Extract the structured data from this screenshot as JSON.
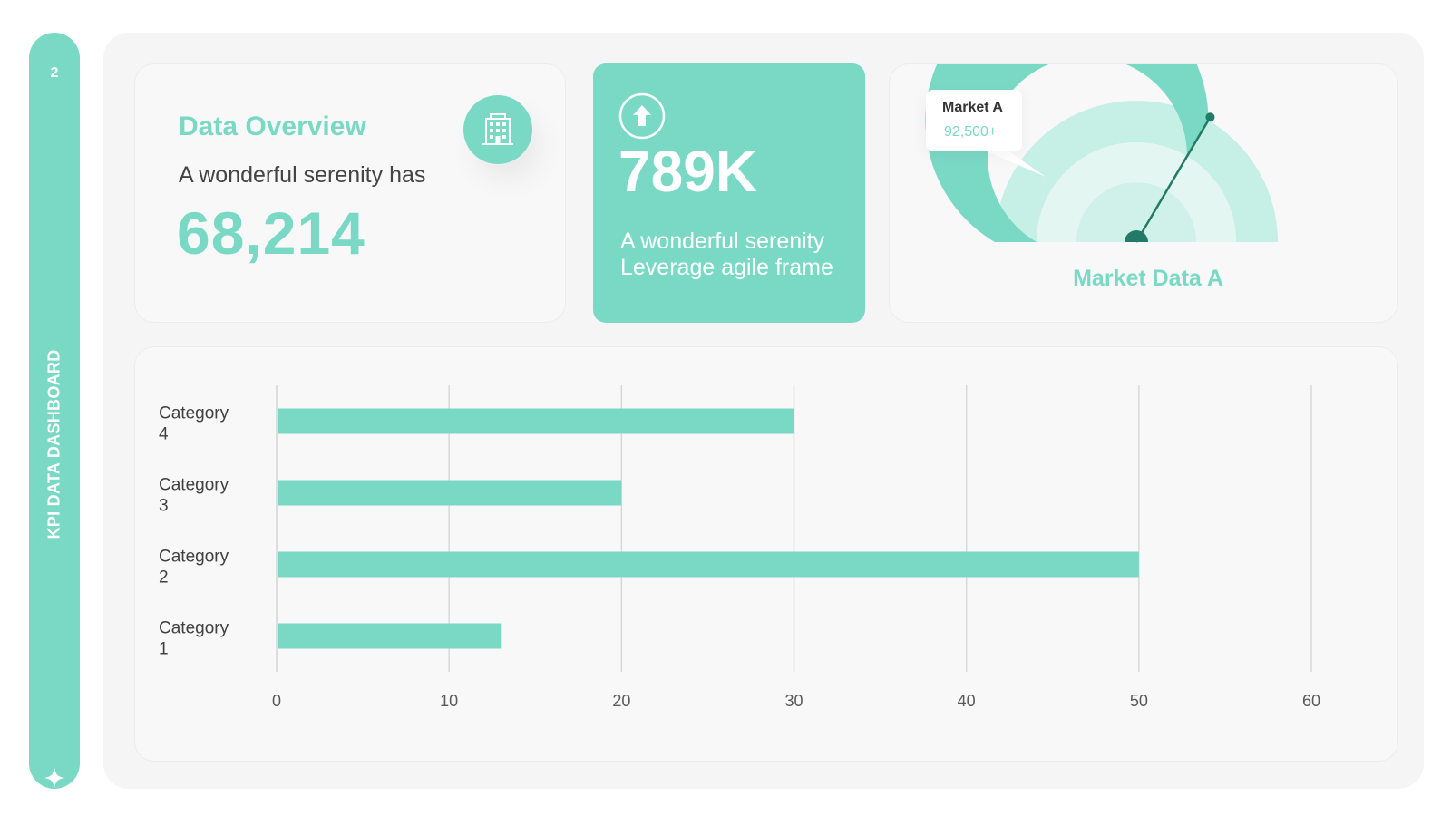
{
  "sidebar": {
    "page_number": "2",
    "title": "KPI DATA DASHBOARD",
    "star_icon": "sparkle-icon"
  },
  "overview": {
    "title": "Data Overview",
    "subtitle": "A wonderful serenity has",
    "value": "68,214",
    "icon": "building-icon"
  },
  "kpi": {
    "icon": "arrow-up-circle-icon",
    "value": "789K",
    "description": "A wonderful serenity Leverage agile frame"
  },
  "gauge": {
    "tooltip_title": "Market A",
    "tooltip_value": "92,500+",
    "label": "Market Data A",
    "needle_fraction": 0.67,
    "colors": {
      "outer": "#7ad9c5",
      "mid": "#c6efe6",
      "inner": "#e3f6f1",
      "core": "#d0f1ea",
      "needle": "#237a66"
    }
  },
  "colors": {
    "accent": "#7ad9c5"
  },
  "chart_data": {
    "type": "bar",
    "orientation": "horizontal",
    "categories": [
      "Category 4",
      "Category 3",
      "Category 2",
      "Category 1"
    ],
    "category_lines": [
      [
        "Category",
        "4"
      ],
      [
        "Category",
        "3"
      ],
      [
        "Category",
        "2"
      ],
      [
        "Category",
        "1"
      ]
    ],
    "values": [
      30,
      20,
      50,
      13
    ],
    "xlim": [
      0,
      60
    ],
    "xticks": [
      0,
      10,
      20,
      30,
      40,
      50,
      60
    ],
    "grid": true,
    "color": "#7ad9c5",
    "title": "",
    "xlabel": "",
    "ylabel": ""
  }
}
